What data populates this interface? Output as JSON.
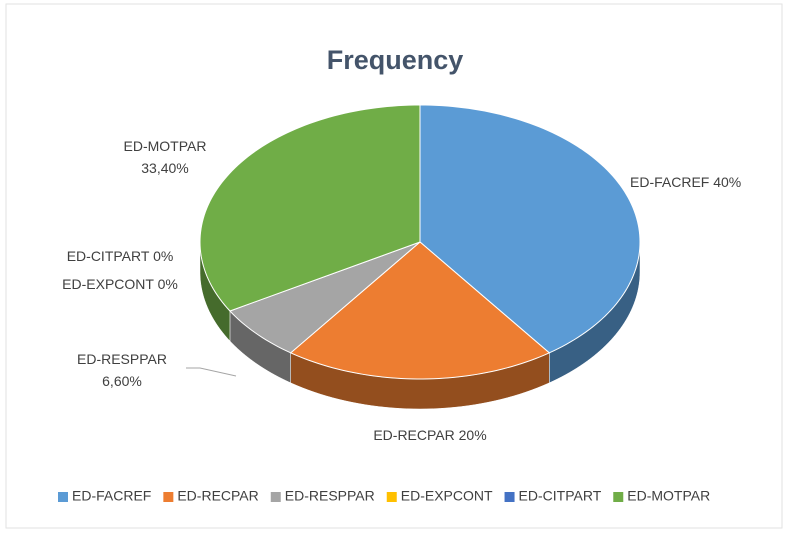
{
  "chart_data": {
    "type": "pie",
    "title": "Frequency",
    "categories": [
      "ED-FACREF",
      "ED-RECPAR",
      "ED-RESPPAR",
      "ED-EXPCONT",
      "ED-CITPART",
      "ED-MOTPAR"
    ],
    "values": [
      40,
      20,
      6.6,
      0,
      0,
      33.4
    ],
    "value_labels": [
      "40%",
      "20%",
      "6,60%",
      "0%",
      "0%",
      "33,40%"
    ],
    "colors": [
      "#5b9bd5",
      "#ed7d31",
      "#a5a5a5",
      "#ffc000",
      "#4472c4",
      "#70ad47"
    ],
    "legend": "bottom"
  }
}
